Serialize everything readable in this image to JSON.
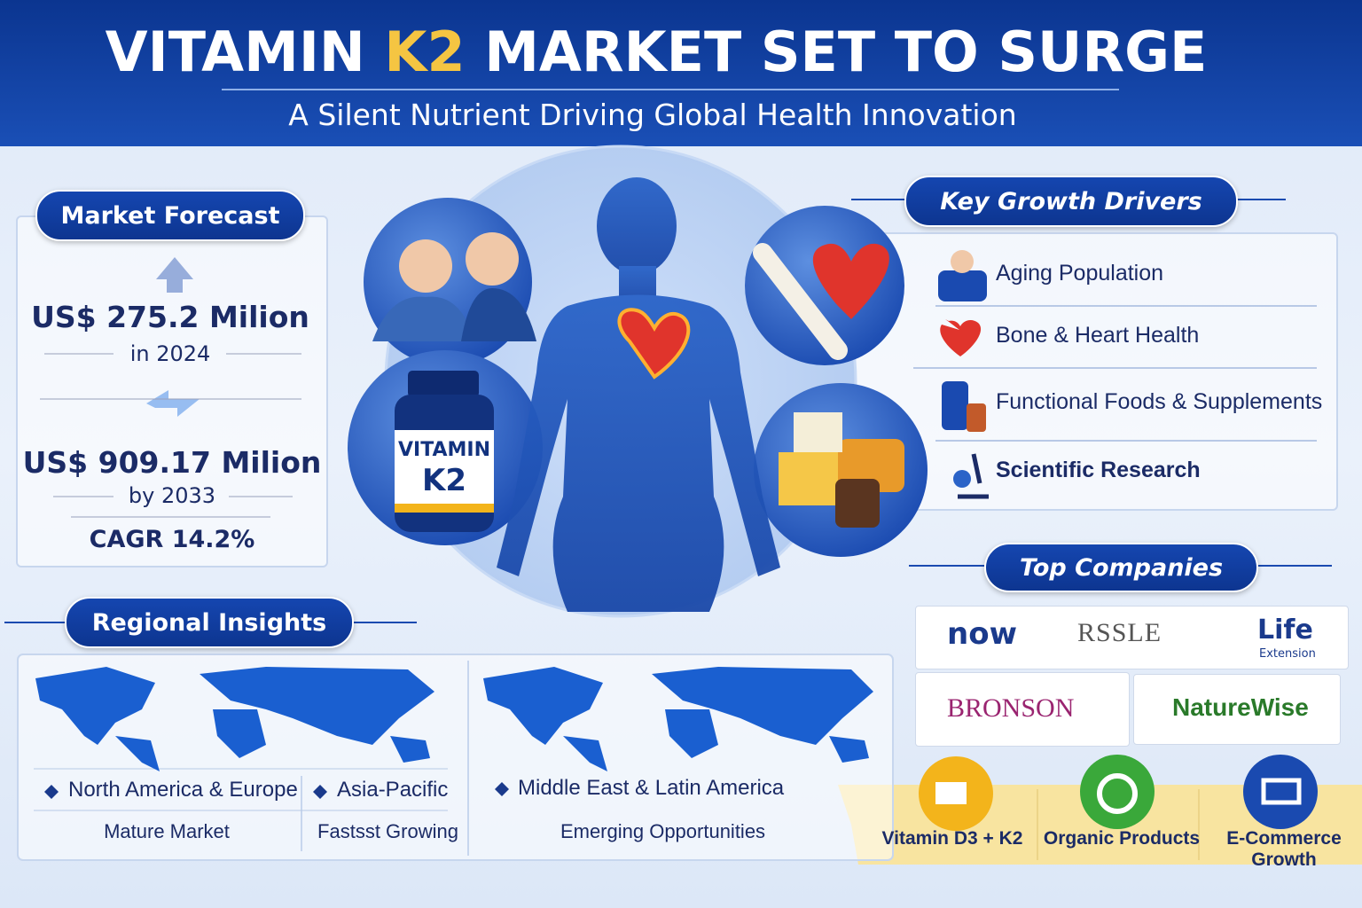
{
  "header": {
    "title_start": "VITAMIN",
    "title_highlight": "K2",
    "title_end": "MARKET SET TO SURGE",
    "subtitle": "A Silent Nutrient Driving Global Health Innovation"
  },
  "forecast": {
    "heading": "Market Forecast",
    "value_2024": "US$ 275.2 Milion",
    "year_2024": "in 2024",
    "value_2033": "US$ 909.17 Milion",
    "year_2033": "by 2033",
    "cagr": "CAGR 14.2%"
  },
  "bottle": {
    "line1": "VITAMIN",
    "line2": "K2"
  },
  "drivers": {
    "heading": "Key Growth Drivers",
    "items": [
      "Aging Population",
      "Bone & Heart Health",
      "Functional Foods & Supplements",
      "Scientific Research"
    ]
  },
  "companies": {
    "heading": "Top Companies",
    "logos": [
      "now",
      "RSSLE",
      "Life",
      "Extension",
      "BRONSON",
      "NatureWise"
    ]
  },
  "trends": [
    "Vitamin D3 + K2",
    "Organic Products",
    "E-Commerce Growth"
  ],
  "regions": {
    "heading": "Regional Insights",
    "items": [
      {
        "name": "North America & Europe",
        "status": "Mature Market"
      },
      {
        "name": "Asia-Pacific",
        "status": "Fastsst Growing"
      },
      {
        "name": "Middle East & Latin America",
        "status": "Emerging Opportunities"
      }
    ]
  }
}
